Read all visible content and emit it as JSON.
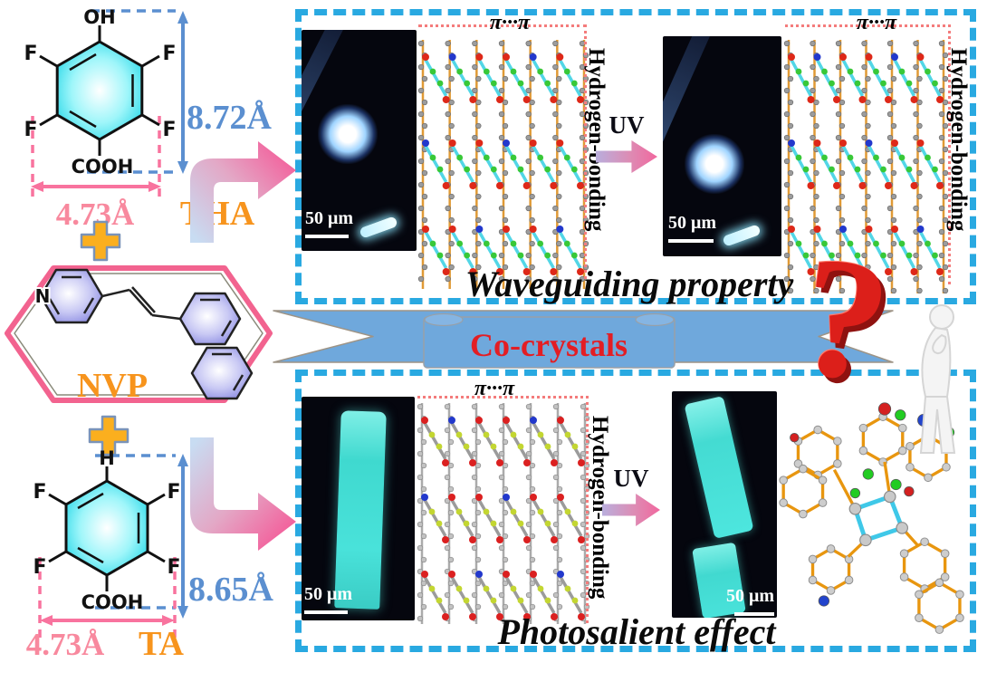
{
  "left_column": {
    "tha": {
      "label": "THA",
      "top_group": "OH",
      "f": "F",
      "bottom_group": "COOH",
      "height": "8.72Å",
      "width": "4.73Å"
    },
    "nvp": {
      "label": "NVP",
      "n": "N"
    },
    "ta": {
      "label": "TA",
      "top_group": "H",
      "f": "F",
      "bottom_group": "COOH",
      "height": "8.65Å",
      "width": "4.73Å"
    },
    "icons": {
      "plus": "+"
    }
  },
  "banner": {
    "label": "Co-crystals"
  },
  "top_panel": {
    "title": "Waveguiding property",
    "pi_pi": "π···π",
    "hydrogen_bonding": "Hydrogen-bonding",
    "uv": "UV",
    "scale_bar": "50 μm"
  },
  "bottom_panel": {
    "title": "Photosalient effect",
    "pi_pi": "π···π",
    "hydrogen_bonding": "Hydrogen-bonding",
    "uv": "UV",
    "scale_bar": "50 μm"
  },
  "question_mark": "?",
  "colors": {
    "panel_dash": "#29A9E1",
    "measure_blue": "#5B8FD0",
    "measure_pink": "#F8739E",
    "label_orange": "#F7941D",
    "banner_blue": "#6FA8DC",
    "cocrystals_red": "#E31E24",
    "plus_orange": "#FBAF1E",
    "ring_cyan": "#2BD8E8",
    "ring_purple": "#8888E0",
    "crystal_cyan": "#45E2DA",
    "bond_orange": "#E8960F",
    "cyclobutane_cyan": "#3FC8E8"
  }
}
